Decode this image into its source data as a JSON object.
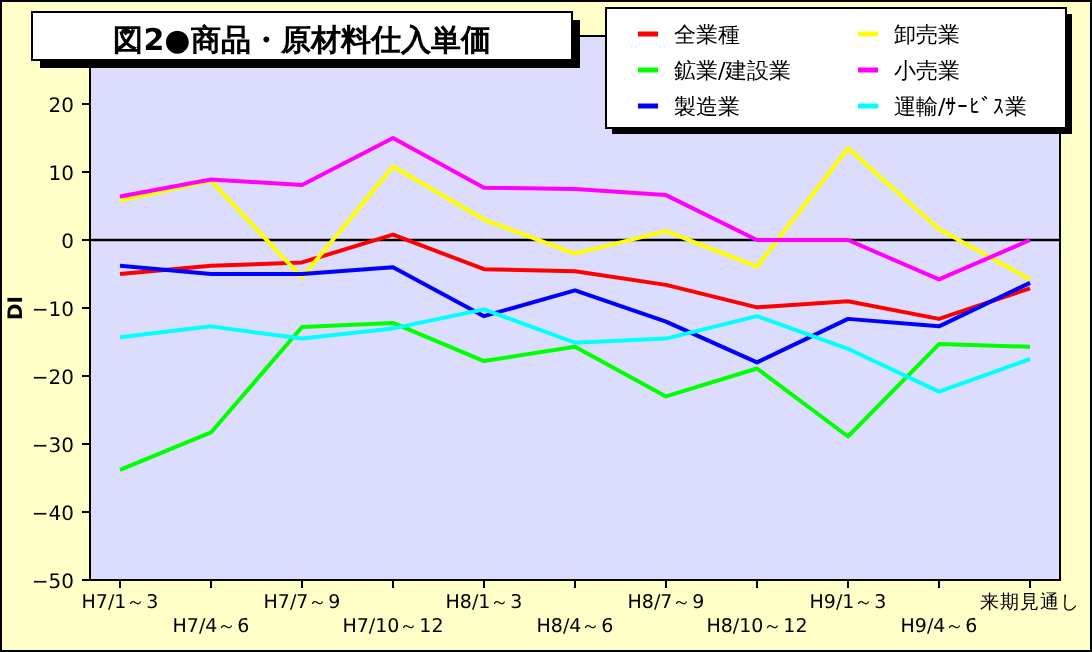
{
  "chart_data": {
    "type": "line",
    "title": "図2●商品・原材料仕入単価",
    "ylabel": "DI",
    "categories": [
      "H7/1～3",
      "H7/4～6",
      "H7/7～9",
      "H7/10～12",
      "H8/1～3",
      "H8/4～6",
      "H8/7～9",
      "H8/10～12",
      "H9/1～3",
      "H9/4～6",
      "来期見通し"
    ],
    "series": [
      {
        "name": "全業種",
        "color": "#ff0000",
        "values": [
          -5,
          -3.8,
          -3.3,
          0.8,
          -4.3,
          -4.6,
          -6.6,
          -9.9,
          -9,
          -11.6,
          -7.1
        ]
      },
      {
        "name": "卸売業",
        "color": "#ffff00",
        "values": [
          5.8,
          8.7,
          -5.5,
          10.8,
          3,
          -2,
          1.3,
          -3.9,
          13.5,
          1.6,
          -5.8
        ]
      },
      {
        "name": "鉱業/建設業",
        "color": "#00ff00",
        "values": [
          -33.8,
          -28.3,
          -12.8,
          -12.2,
          -17.8,
          -15.7,
          -23,
          -18.9,
          -28.9,
          -15.3,
          -15.7
        ]
      },
      {
        "name": "小売業",
        "color": "#ff00ff",
        "values": [
          6.4,
          8.9,
          8.1,
          15,
          7.7,
          7.5,
          6.6,
          0,
          0,
          -5.8,
          0
        ]
      },
      {
        "name": "製造業",
        "color": "#0000ff",
        "values": [
          -3.8,
          -5,
          -5,
          -4,
          -11.2,
          -7.4,
          -12,
          -18,
          -11.6,
          -12.7,
          -6.3
        ]
      },
      {
        "name": "運輸/ｻｰﾋﾞｽ業",
        "color": "#00ffff",
        "values": [
          -14.3,
          -12.7,
          -14.5,
          -13,
          -10.2,
          -15.1,
          -14.5,
          -11.2,
          -16,
          -22.3,
          -17.5
        ]
      }
    ],
    "ylim": [
      -50,
      30
    ],
    "yticks": [
      -50,
      -40,
      -30,
      -20,
      -10,
      0,
      10,
      20
    ],
    "ref_lines": [
      {
        "axis": "y",
        "value": 0,
        "color": "#000000"
      }
    ],
    "grid": false,
    "legend": "top right",
    "marker": "none",
    "line_style": "solid"
  }
}
